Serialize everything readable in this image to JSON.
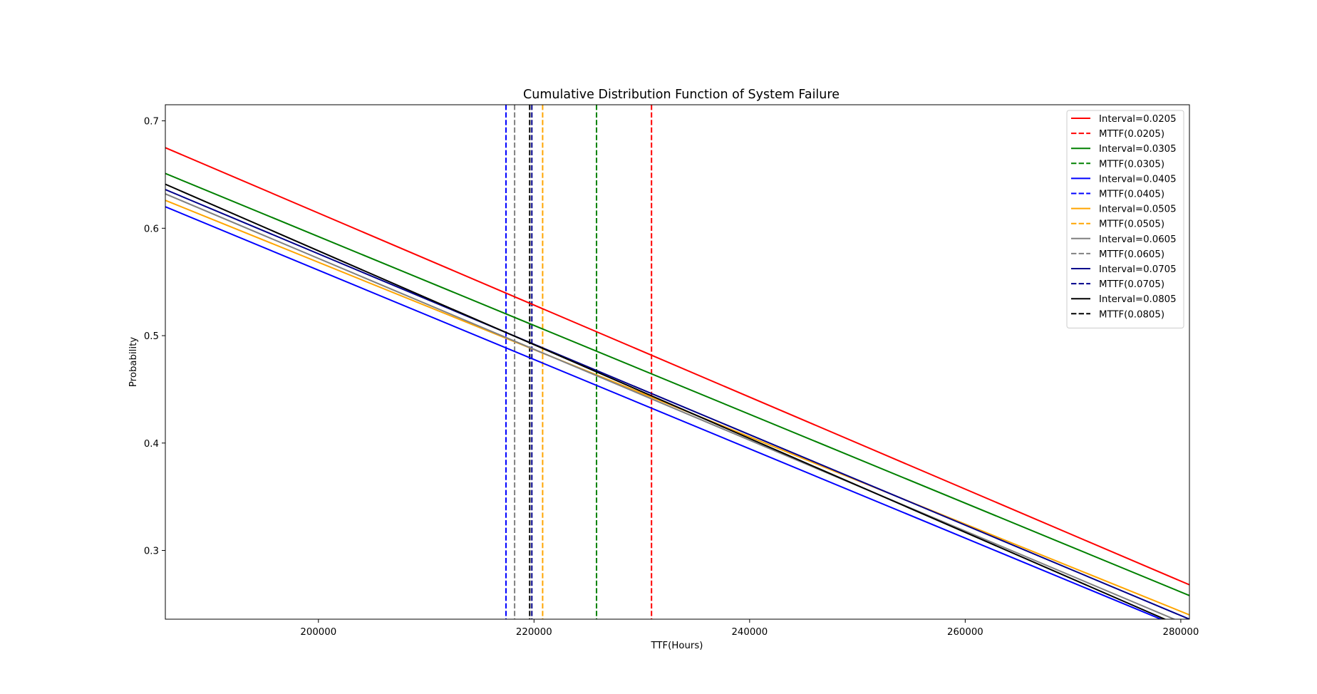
{
  "chart_data": {
    "type": "line",
    "title": "Cumulative Distribution Function of System Failure",
    "xlabel": "TTF(Hours)",
    "ylabel": "Probability",
    "xlim": [
      185800,
      280800
    ],
    "ylim": [
      0.236,
      0.715
    ],
    "xticks": [
      200000,
      220000,
      240000,
      260000,
      280000
    ],
    "yticks": [
      0.3,
      0.4,
      0.5,
      0.6,
      0.7
    ],
    "grid": false,
    "legend_position": "top-right",
    "series": [
      {
        "name": "Interval=0.0205",
        "color": "#ff0000",
        "line": {
          "x": [
            185800,
            280800
          ],
          "y": [
            0.675,
            0.268
          ]
        }
      },
      {
        "name": "Interval=0.0305",
        "color": "#008000",
        "line": {
          "x": [
            185800,
            280800
          ],
          "y": [
            0.651,
            0.258
          ]
        }
      },
      {
        "name": "Interval=0.0405",
        "color": "#0000ff",
        "line": {
          "x": [
            185800,
            280800
          ],
          "y": [
            0.62,
            0.225
          ]
        }
      },
      {
        "name": "Interval=0.0505",
        "color": "#ffa500",
        "line": {
          "x": [
            185800,
            280800
          ],
          "y": [
            0.626,
            0.24
          ]
        }
      },
      {
        "name": "Interval=0.0605",
        "color": "#808080",
        "line": {
          "x": [
            185800,
            280800
          ],
          "y": [
            0.632,
            0.23
          ]
        }
      },
      {
        "name": "Interval=0.0705",
        "color": "#00008b",
        "line": {
          "x": [
            185800,
            280800
          ],
          "y": [
            0.636,
            0.236
          ]
        }
      },
      {
        "name": "Interval=0.0805",
        "color": "#000000",
        "line": {
          "x": [
            185800,
            280800
          ],
          "y": [
            0.641,
            0.226
          ]
        }
      }
    ],
    "mttf_lines": [
      {
        "name": "MTTF(0.0205)",
        "color": "#ff0000",
        "x": 230900
      },
      {
        "name": "MTTF(0.0305)",
        "color": "#008000",
        "x": 225800
      },
      {
        "name": "MTTF(0.0405)",
        "color": "#0000ff",
        "x": 217400
      },
      {
        "name": "MTTF(0.0505)",
        "color": "#ffa500",
        "x": 220800
      },
      {
        "name": "MTTF(0.0605)",
        "color": "#808080",
        "x": 218200
      },
      {
        "name": "MTTF(0.0705)",
        "color": "#00008b",
        "x": 219800
      },
      {
        "name": "MTTF(0.0805)",
        "color": "#000000",
        "x": 219600
      }
    ],
    "legend_entries": [
      {
        "label": "Interval=0.0205",
        "color": "#ff0000",
        "dashed": false
      },
      {
        "label": "MTTF(0.0205)",
        "color": "#ff0000",
        "dashed": true
      },
      {
        "label": "Interval=0.0305",
        "color": "#008000",
        "dashed": false
      },
      {
        "label": "MTTF(0.0305)",
        "color": "#008000",
        "dashed": true
      },
      {
        "label": "Interval=0.0405",
        "color": "#0000ff",
        "dashed": false
      },
      {
        "label": "MTTF(0.0405)",
        "color": "#0000ff",
        "dashed": true
      },
      {
        "label": "Interval=0.0505",
        "color": "#ffa500",
        "dashed": false
      },
      {
        "label": "MTTF(0.0505)",
        "color": "#ffa500",
        "dashed": true
      },
      {
        "label": "Interval=0.0605",
        "color": "#808080",
        "dashed": false
      },
      {
        "label": "MTTF(0.0605)",
        "color": "#808080",
        "dashed": true
      },
      {
        "label": "Interval=0.0705",
        "color": "#00008b",
        "dashed": false
      },
      {
        "label": "MTTF(0.0705)",
        "color": "#00008b",
        "dashed": true
      },
      {
        "label": "Interval=0.0805",
        "color": "#000000",
        "dashed": false
      },
      {
        "label": "MTTF(0.0805)",
        "color": "#000000",
        "dashed": true
      }
    ]
  }
}
